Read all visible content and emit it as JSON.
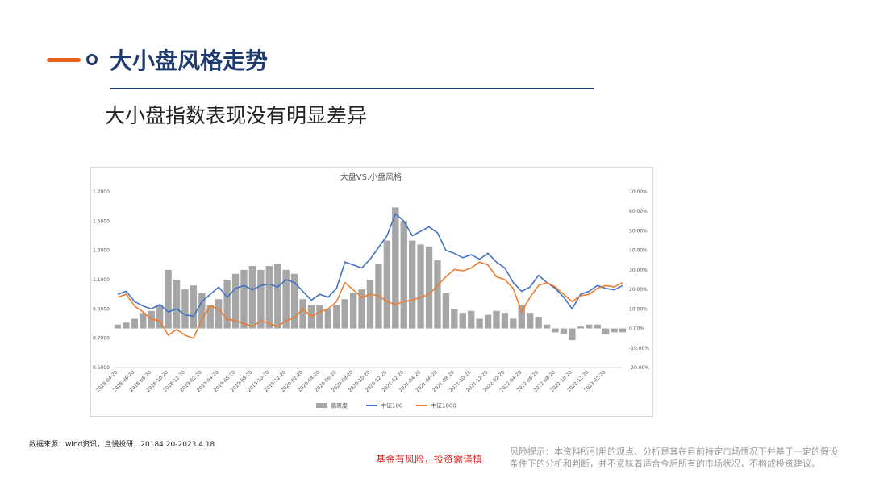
{
  "slide": {
    "title": "大小盘风格走势",
    "subtitle": "大小盘指数表现没有明显差异",
    "source": "数据来源：wind资讯，且慢投研，20184.20-2023.4.18",
    "warning": "基金有风险，投资需谨慎",
    "disclaimer": [
      "风险提示：本资料所引用的观点、分析是其在目前特定市场情况下并基于一定的假设",
      "条件下的分析和判断，并不意味着适合今后所有的市场状况，不构成投资建议。"
    ]
  },
  "chart_data": {
    "type": "combo",
    "title": "大盘VS.小盘风格",
    "categories": [
      "2018-04-20",
      null,
      "2018-06-20",
      null,
      "2018-08-20",
      null,
      "2018-10-20",
      null,
      "2018-12-20",
      null,
      "2019-02-20",
      null,
      "2019-04-20",
      null,
      "2019-06-20",
      null,
      "2019-08-20",
      null,
      "2019-10-20",
      null,
      "2019-12-20",
      null,
      "2020-02-20",
      null,
      "2020-04-20",
      null,
      "2020-06-20",
      null,
      "2020-08-20",
      null,
      "2020-10-20",
      null,
      "2020-12-20",
      null,
      "2021-02-20",
      null,
      "2021-04-20",
      null,
      "2021-06-20",
      null,
      "2021-08-20",
      null,
      "2021-10-20",
      null,
      "2021-12-20",
      null,
      "2022-02-20",
      null,
      "2022-04-20",
      null,
      "2022-06-20",
      null,
      "2022-08-20",
      null,
      "2022-10-20",
      null,
      "2022-12-20",
      null,
      "2023-02-20",
      null,
      null
    ],
    "series": [
      {
        "name": "偏离度",
        "type": "bar",
        "axis": "y2",
        "color": "#a6a6a6",
        "values": [
          2,
          3,
          5,
          8,
          9,
          12,
          30,
          25,
          20,
          22,
          18,
          12,
          15,
          25,
          28,
          30,
          32,
          30,
          32,
          33,
          30,
          28,
          15,
          12,
          12,
          10,
          12,
          15,
          18,
          20,
          25,
          33,
          45,
          62,
          55,
          45,
          43,
          42,
          35,
          18,
          10,
          8,
          9,
          5,
          7,
          9,
          8,
          5,
          12,
          8,
          6,
          2,
          -2,
          -3,
          -6,
          1,
          2,
          2,
          -3,
          -2,
          -2
        ]
      },
      {
        "name": "中证100",
        "type": "line",
        "color": "#4472c4",
        "values": [
          1.0,
          1.02,
          0.95,
          0.92,
          0.9,
          0.93,
          0.88,
          0.9,
          0.86,
          0.85,
          0.95,
          1.0,
          1.05,
          0.98,
          1.04,
          1.06,
          1.03,
          1.06,
          1.07,
          1.05,
          1.1,
          1.08,
          1.02,
          0.96,
          1.0,
          0.98,
          1.04,
          1.22,
          1.2,
          1.18,
          1.24,
          1.32,
          1.4,
          1.55,
          1.5,
          1.4,
          1.43,
          1.46,
          1.42,
          1.3,
          1.28,
          1.25,
          1.27,
          1.24,
          1.28,
          1.22,
          1.18,
          1.08,
          1.02,
          1.05,
          1.13,
          1.08,
          1.04,
          0.98,
          0.9,
          1.0,
          1.02,
          1.06,
          1.04,
          1.03,
          1.06
        ]
      },
      {
        "name": "中证1000",
        "type": "line",
        "color": "#ed7d31",
        "values": [
          0.98,
          1.0,
          0.92,
          0.88,
          0.83,
          0.82,
          0.72,
          0.76,
          0.72,
          0.7,
          0.83,
          0.92,
          0.9,
          0.83,
          0.82,
          0.8,
          0.78,
          0.82,
          0.8,
          0.78,
          0.82,
          0.84,
          0.9,
          0.85,
          0.88,
          0.9,
          0.95,
          1.08,
          1.03,
          0.98,
          1.0,
          0.99,
          0.95,
          0.93,
          0.95,
          0.96,
          0.98,
          1.0,
          1.06,
          1.12,
          1.17,
          1.16,
          1.18,
          1.22,
          1.2,
          1.12,
          1.1,
          1.04,
          0.88,
          0.98,
          1.06,
          1.08,
          1.05,
          1.0,
          0.95,
          0.99,
          1.0,
          1.04,
          1.06,
          1.05,
          1.08
        ]
      }
    ],
    "ylim": [
      0.5,
      1.7
    ],
    "yticks": [
      {
        "value": 0.5,
        "label": "0.5000"
      },
      {
        "value": 0.7,
        "label": "0.7000"
      },
      {
        "value": 0.9,
        "label": "0.9000"
      },
      {
        "value": 1.1,
        "label": "1.1000"
      },
      {
        "value": 1.3,
        "label": "1.3000"
      },
      {
        "value": 1.5,
        "label": "1.5000"
      },
      {
        "value": 1.7,
        "label": "1.7000"
      }
    ],
    "y2lim": [
      -20,
      70
    ],
    "y2ticks": [
      {
        "value": -20,
        "label": "-20.00%"
      },
      {
        "value": -10,
        "label": "-10.00%"
      },
      {
        "value": 0,
        "label": "0.00%"
      },
      {
        "value": 10,
        "label": "10.00%"
      },
      {
        "value": 20,
        "label": "20.00%"
      },
      {
        "value": 30,
        "label": "30.00%"
      },
      {
        "value": 40,
        "label": "40.00%"
      },
      {
        "value": 50,
        "label": "50.00%"
      },
      {
        "value": 60,
        "label": "60.00%"
      },
      {
        "value": 70,
        "label": "70.00%"
      }
    ],
    "legend": "bottom"
  }
}
